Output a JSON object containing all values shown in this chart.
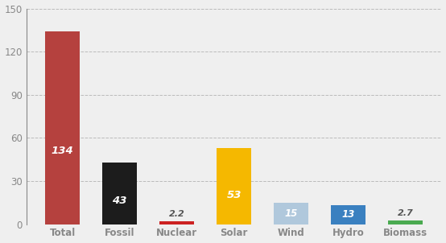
{
  "categories": [
    "Total",
    "Fossil",
    "Nuclear",
    "Solar",
    "Wind",
    "Hydro",
    "Biomass"
  ],
  "values": [
    134,
    43,
    2.2,
    53,
    15,
    13,
    2.7
  ],
  "bar_colors": [
    "#b5413e",
    "#1c1c1c",
    "#cc2222",
    "#f5b800",
    "#b0c8dc",
    "#3a80c0",
    "#4aaa50"
  ],
  "label_colors": [
    "white",
    "white",
    "#886600",
    "white",
    "white",
    "white",
    "#336622"
  ],
  "labels": [
    "134",
    "43",
    "2.2",
    "53",
    "15",
    "13",
    "2.7"
  ],
  "ylim": [
    0,
    150
  ],
  "yticks": [
    0,
    30,
    60,
    90,
    120,
    150
  ],
  "background_color": "#efefef",
  "grid_color": "#bbbbbb",
  "bar_width": 0.6,
  "tick_label_color": "#888888",
  "tick_label_fontsize": 8.5,
  "spine_color": "#888888"
}
